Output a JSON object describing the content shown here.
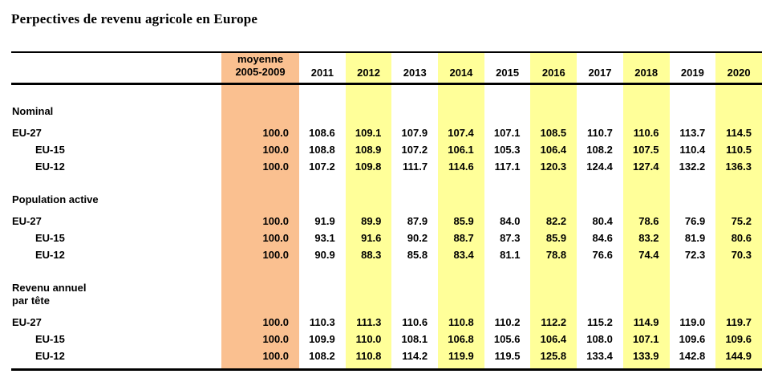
{
  "page": {
    "title": "Perpectives de revenu agricole en Europe"
  },
  "colors": {
    "moyenne_column_bg": "#FAC090",
    "year_highlight_bg": "#FFFF99",
    "rule_color": "#000000",
    "text": "#000000"
  },
  "chart_data": {
    "type": "table",
    "title": "Perpectives de revenu agricole en Europe",
    "header": {
      "moyenne_line1": "moyenne",
      "moyenne_line2": "2005-2009",
      "years": [
        "2011",
        "2012",
        "2013",
        "2014",
        "2015",
        "2016",
        "2017",
        "2018",
        "2019",
        "2020"
      ],
      "highlighted_years": [
        "2012",
        "2014",
        "2016",
        "2018",
        "2020"
      ]
    },
    "sections": [
      {
        "label": "Nominal",
        "rows": [
          {
            "label": "EU-27",
            "indent": false,
            "moyenne": "100.0",
            "values": [
              "108.6",
              "109.1",
              "107.9",
              "107.4",
              "107.1",
              "108.5",
              "110.7",
              "110.6",
              "113.7",
              "114.5"
            ]
          },
          {
            "label": "EU-15",
            "indent": true,
            "moyenne": "100.0",
            "values": [
              "108.8",
              "108.9",
              "107.2",
              "106.1",
              "105.3",
              "106.4",
              "108.2",
              "107.5",
              "110.4",
              "110.5"
            ]
          },
          {
            "label": "EU-12",
            "indent": true,
            "moyenne": "100.0",
            "values": [
              "107.2",
              "109.8",
              "111.7",
              "114.6",
              "117.1",
              "120.3",
              "124.4",
              "127.4",
              "132.2",
              "136.3"
            ]
          }
        ]
      },
      {
        "label": "Population active",
        "rows": [
          {
            "label": "EU-27",
            "indent": false,
            "moyenne": "100.0",
            "values": [
              "91.9",
              "89.9",
              "87.9",
              "85.9",
              "84.0",
              "82.2",
              "80.4",
              "78.6",
              "76.9",
              "75.2"
            ]
          },
          {
            "label": "EU-15",
            "indent": true,
            "moyenne": "100.0",
            "values": [
              "93.1",
              "91.6",
              "90.2",
              "88.7",
              "87.3",
              "85.9",
              "84.6",
              "83.2",
              "81.9",
              "80.6"
            ]
          },
          {
            "label": "EU-12",
            "indent": true,
            "moyenne": "100.0",
            "values": [
              "90.9",
              "88.3",
              "85.8",
              "83.4",
              "81.1",
              "78.8",
              "76.6",
              "74.4",
              "72.3",
              "70.3"
            ]
          }
        ]
      },
      {
        "label": "Revenu annuel\npar tête",
        "rows": [
          {
            "label": "EU-27",
            "indent": false,
            "moyenne": "100.0",
            "values": [
              "110.3",
              "111.3",
              "110.6",
              "110.8",
              "110.2",
              "112.2",
              "115.2",
              "114.9",
              "119.0",
              "119.7"
            ]
          },
          {
            "label": "EU-15",
            "indent": true,
            "moyenne": "100.0",
            "values": [
              "109.9",
              "110.0",
              "108.1",
              "106.8",
              "105.6",
              "106.4",
              "108.0",
              "107.1",
              "109.6",
              "109.6"
            ]
          },
          {
            "label": "EU-12",
            "indent": true,
            "moyenne": "100.0",
            "values": [
              "108.2",
              "110.8",
              "114.2",
              "119.9",
              "119.5",
              "125.8",
              "133.4",
              "133.9",
              "142.8",
              "144.9"
            ]
          }
        ]
      }
    ]
  }
}
